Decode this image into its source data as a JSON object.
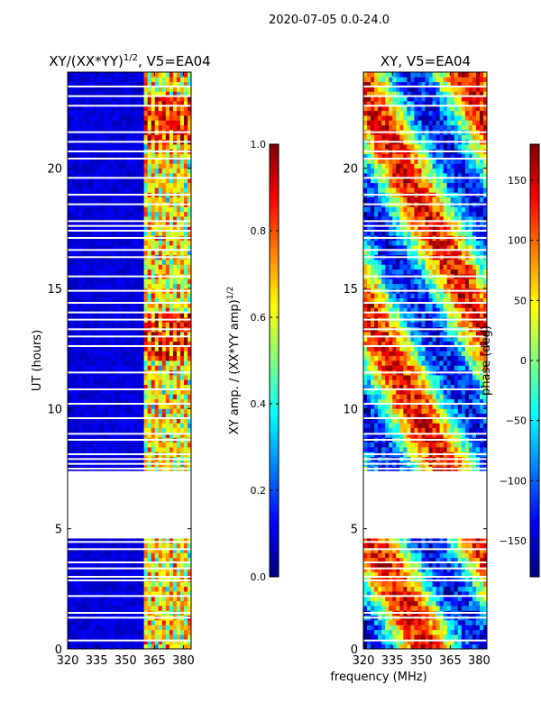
{
  "suptitle": "2020-07-05 0.0-24.0",
  "xlabel": "frequency (MHz)",
  "colors": {
    "jet": [
      "#00007f",
      "#0000ff",
      "#007fff",
      "#00ffff",
      "#7fff7f",
      "#ffff00",
      "#ff7f00",
      "#ff0000",
      "#7f0000"
    ],
    "gap": "#ffffff"
  },
  "chart_data": [
    {
      "type": "heatmap",
      "name": "amplitude",
      "title": "XY/(XX*YY)",
      "title_sup": "1/2",
      "title_suffix": ", V5=EA04",
      "ylabel": "UT (hours)",
      "xlim": [
        320,
        384
      ],
      "ylim": [
        0,
        24
      ],
      "xticks": [
        320,
        335,
        350,
        365,
        380
      ],
      "yticks": [
        0,
        5,
        10,
        15,
        20
      ],
      "colorbar": {
        "label": "XY amp. / (XX*YY amp)",
        "label_sup": "1/2",
        "range": [
          0.0,
          1.0
        ],
        "ticks": [
          "0.0",
          "0.2",
          "0.4",
          "0.6",
          "0.8",
          "1.0"
        ],
        "values": [
          0.0,
          0.2,
          0.4,
          0.6,
          0.8,
          1.0
        ]
      },
      "blank_hours": [
        [
          4.6,
          7.4
        ]
      ],
      "gap_hours": [
        0.35,
        1.3,
        1.5,
        2.2,
        2.85,
        3.0,
        3.35,
        3.6,
        4.15,
        4.45,
        7.5,
        7.7,
        7.9,
        8.1,
        8.7,
        8.95,
        9.6,
        10.2,
        10.8,
        11.5,
        12.6,
        13.0,
        13.3,
        13.7,
        14.0,
        14.4,
        14.9,
        15.5,
        16.3,
        16.6,
        17.1,
        17.4,
        17.6,
        17.8,
        18.5,
        18.9,
        19.6,
        20.4,
        20.7,
        21.1,
        21.5,
        22.6,
        23.0,
        23.4
      ]
    },
    {
      "type": "heatmap",
      "name": "phase",
      "title": "XY, V5=EA04",
      "xlim": [
        320,
        384
      ],
      "ylim": [
        0,
        24
      ],
      "xticks": [
        320,
        335,
        350,
        365,
        380
      ],
      "yticks": [
        0,
        5,
        10,
        15,
        20
      ],
      "colorbar": {
        "label": "phase (deg)",
        "range": [
          -180,
          180
        ],
        "ticks": [
          "−150",
          "−100",
          "−50",
          "0",
          "50",
          "100",
          "150"
        ],
        "values": [
          -150,
          -100,
          -50,
          0,
          50,
          100,
          150
        ]
      },
      "blank_hours": [
        [
          4.6,
          7.4
        ]
      ],
      "gap_hours": [
        0.35,
        1.3,
        1.5,
        2.2,
        2.85,
        3.0,
        3.35,
        3.6,
        4.15,
        4.45,
        7.5,
        7.7,
        7.9,
        8.1,
        8.7,
        8.95,
        9.6,
        10.2,
        10.8,
        11.5,
        12.6,
        13.0,
        13.3,
        13.7,
        14.0,
        14.4,
        14.9,
        15.5,
        16.3,
        16.6,
        17.1,
        17.4,
        17.6,
        17.8,
        18.5,
        18.9,
        19.6,
        20.4,
        20.7,
        21.1,
        21.5,
        22.6,
        23.0,
        23.4
      ]
    }
  ]
}
